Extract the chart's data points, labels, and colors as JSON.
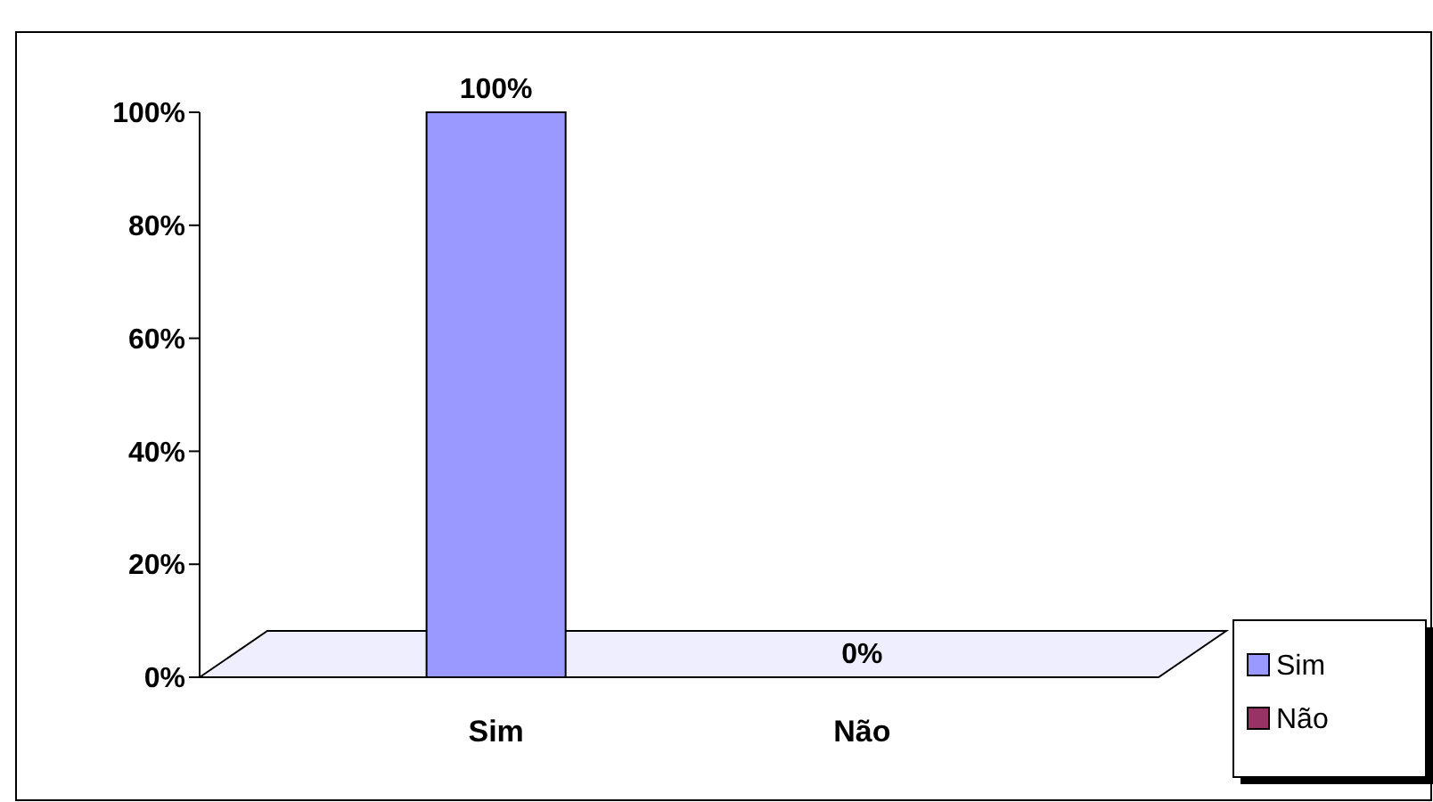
{
  "chart_data": {
    "type": "bar",
    "categories": [
      "Sim",
      "Não"
    ],
    "series": [
      {
        "name": "Sim",
        "color": "#9999ff",
        "values": [
          100,
          null
        ],
        "value_labels": [
          "100%",
          null
        ]
      },
      {
        "name": "Não",
        "color": "#993366",
        "values": [
          null,
          0
        ],
        "value_labels": [
          null,
          "0%"
        ]
      }
    ],
    "ylim": [
      0,
      100
    ],
    "yticks": [
      {
        "value": 0,
        "label": "0%"
      },
      {
        "value": 20,
        "label": "20%"
      },
      {
        "value": 40,
        "label": "40%"
      },
      {
        "value": 60,
        "label": "60%"
      },
      {
        "value": 80,
        "label": "80%"
      },
      {
        "value": 100,
        "label": "100%"
      }
    ],
    "legend": "bottom right"
  }
}
